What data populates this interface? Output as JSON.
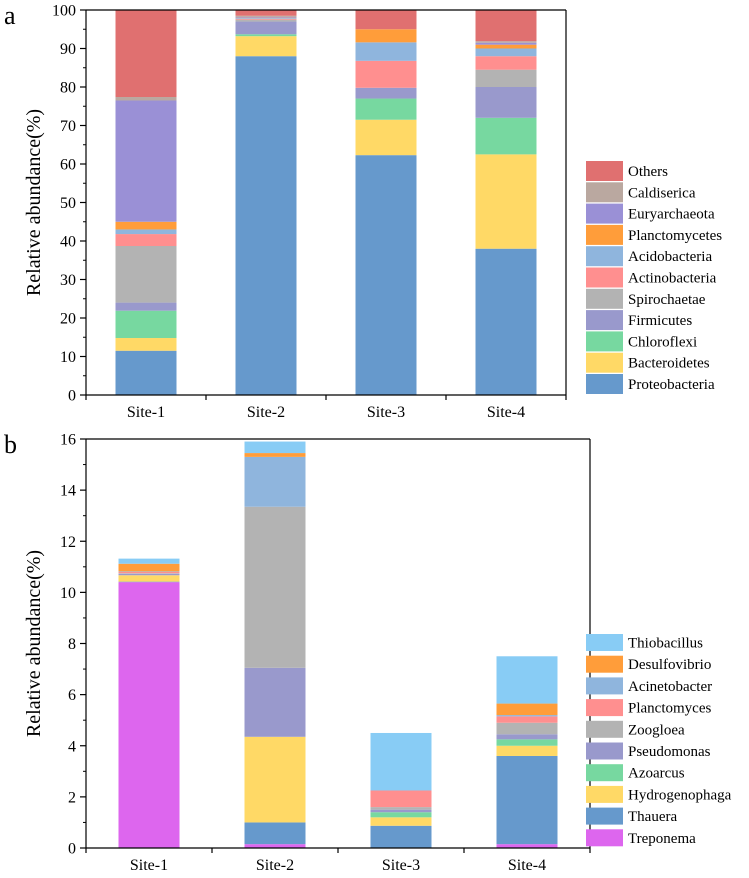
{
  "chart_data": [
    {
      "type": "bar",
      "stacked": true,
      "panel_label": "a",
      "title": "",
      "xlabel": "",
      "ylabel": "Relative abundance(%)",
      "ylim": [
        0,
        100
      ],
      "yticks": [
        0,
        10,
        20,
        30,
        40,
        50,
        60,
        70,
        80,
        90,
        100
      ],
      "categories": [
        "Site-1",
        "Site-2",
        "Site-3",
        "Site-4"
      ],
      "legend_position": "right",
      "series": [
        {
          "name": "Proteobacteria",
          "color": "#6699cc",
          "values": [
            11.5,
            88.0,
            62.3,
            38.0
          ]
        },
        {
          "name": "Bacteroidetes",
          "color": "#ffd966",
          "values": [
            3.3,
            5.2,
            9.2,
            24.5
          ]
        },
        {
          "name": "Chloroflexi",
          "color": "#77d8a0",
          "values": [
            7.1,
            0.5,
            5.5,
            9.5
          ]
        },
        {
          "name": "Firmicutes",
          "color": "#9999cc",
          "values": [
            2.1,
            3.3,
            2.8,
            8.0
          ]
        },
        {
          "name": "Spirochaetae",
          "color": "#b3b3b3",
          "values": [
            14.7,
            0.5,
            0.0,
            4.5
          ]
        },
        {
          "name": "Actinobacteria",
          "color": "#ff8f8f",
          "values": [
            3.1,
            0.2,
            7.0,
            3.5
          ]
        },
        {
          "name": "Acidobacteria",
          "color": "#8fb5dd",
          "values": [
            1.2,
            0.2,
            4.8,
            2.0
          ]
        },
        {
          "name": "Planctomycetes",
          "color": "#ff9d3a",
          "values": [
            2.0,
            0.1,
            3.4,
            1.0
          ]
        },
        {
          "name": "Euryarchaeota",
          "color": "#9a90d6",
          "values": [
            31.5,
            0.2,
            0.0,
            0.5
          ]
        },
        {
          "name": "Caldiserica",
          "color": "#baa8a0",
          "values": [
            0.9,
            0.3,
            0.0,
            0.4
          ]
        },
        {
          "name": "Others",
          "color": "#e07070",
          "values": [
            22.6,
            1.5,
            5.0,
            8.1
          ]
        }
      ]
    },
    {
      "type": "bar",
      "stacked": true,
      "panel_label": "b",
      "title": "",
      "xlabel": "",
      "ylabel": "Relative abundance(%)",
      "ylim": [
        0,
        16
      ],
      "yticks": [
        0,
        2,
        4,
        6,
        8,
        10,
        12,
        14,
        16
      ],
      "categories": [
        "Site-1",
        "Site-2",
        "Site-3",
        "Site-4"
      ],
      "legend_position": "right",
      "series": [
        {
          "name": "Treponema",
          "color": "#dd66ee",
          "values": [
            10.4,
            0.15,
            0.02,
            0.15
          ]
        },
        {
          "name": "Thauera",
          "color": "#6699cc",
          "values": [
            0.02,
            0.85,
            0.85,
            3.45
          ]
        },
        {
          "name": "Hydrogenophaga",
          "color": "#ffd966",
          "values": [
            0.25,
            3.35,
            0.33,
            0.4
          ]
        },
        {
          "name": "Azoarcus",
          "color": "#77d8a0",
          "values": [
            0.0,
            0.0,
            0.2,
            0.25
          ]
        },
        {
          "name": "Pseudomonas",
          "color": "#9999cc",
          "values": [
            0.06,
            2.7,
            0.1,
            0.2
          ]
        },
        {
          "name": "Zoogloea",
          "color": "#b3b3b3",
          "values": [
            0.02,
            6.3,
            0.1,
            0.45
          ]
        },
        {
          "name": "Planctomyces",
          "color": "#ff8f8f",
          "values": [
            0.05,
            0.0,
            0.65,
            0.25
          ]
        },
        {
          "name": "Acinetobacter",
          "color": "#8fb5dd",
          "values": [
            0.02,
            1.95,
            0.0,
            0.05
          ]
        },
        {
          "name": "Desulfovibrio",
          "color": "#ff9d3a",
          "values": [
            0.3,
            0.15,
            0.0,
            0.45
          ]
        },
        {
          "name": "Thiobacillus",
          "color": "#88ccf5",
          "values": [
            0.2,
            0.45,
            2.25,
            1.85
          ]
        }
      ]
    }
  ]
}
